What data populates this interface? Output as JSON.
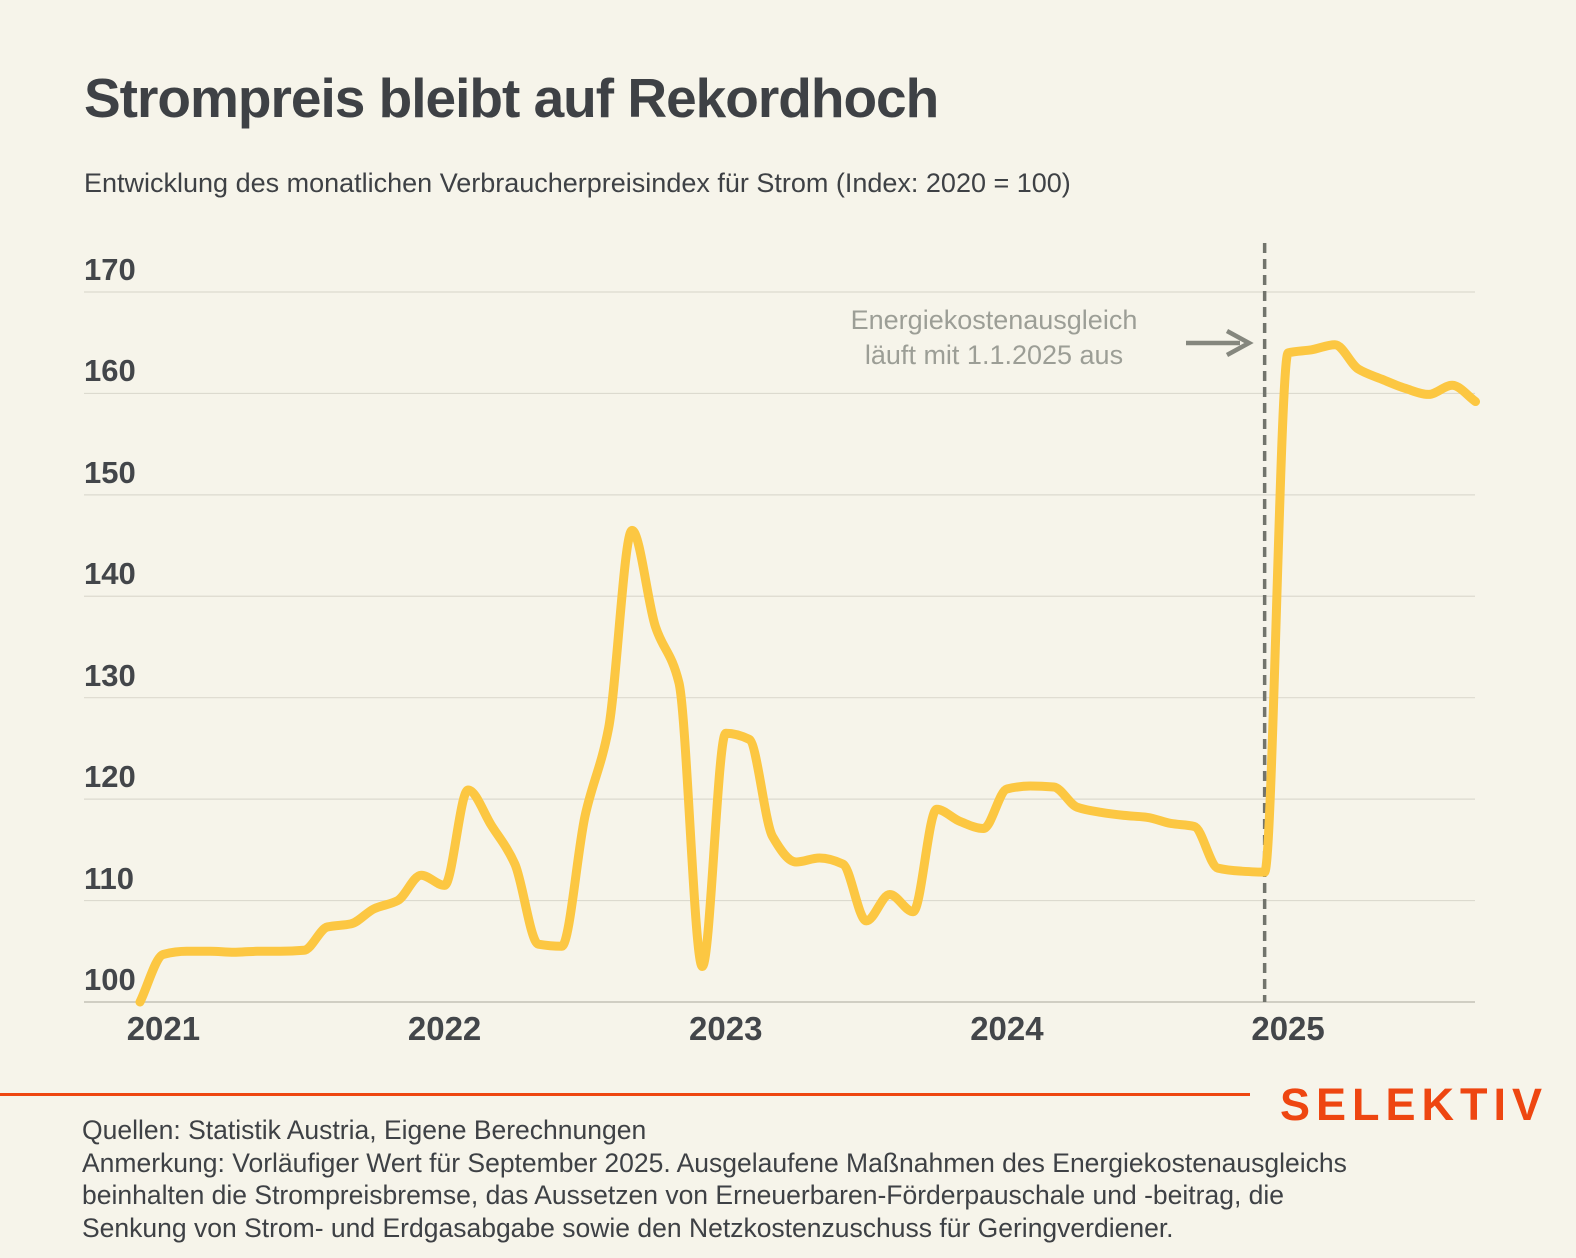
{
  "header": {
    "title": "Strompreis bleibt auf Rekordhoch",
    "subtitle": "Entwicklung des monatlichen Verbraucherpreisindex für Strom (Index: 2020 = 100)"
  },
  "chart_data": {
    "type": "line",
    "title": "Strompreis bleibt auf Rekordhoch",
    "series_name": "Verbraucherpreisindex Strom",
    "xlabel": "",
    "ylabel": "Index (2020 = 100)",
    "ylim": [
      100,
      170
    ],
    "grid": true,
    "y_ticks": [
      100,
      110,
      120,
      130,
      140,
      150,
      160,
      170
    ],
    "x_ticks": [
      {
        "label": "2021",
        "month_index": 1
      },
      {
        "label": "2022",
        "month_index": 13
      },
      {
        "label": "2023",
        "month_index": 25
      },
      {
        "label": "2024",
        "month_index": 37
      },
      {
        "label": "2025",
        "month_index": 49
      }
    ],
    "x": [
      "2020-12",
      "2021-01",
      "2021-02",
      "2021-03",
      "2021-04",
      "2021-05",
      "2021-06",
      "2021-07",
      "2021-08",
      "2021-09",
      "2021-10",
      "2021-11",
      "2021-12",
      "2022-01",
      "2022-02",
      "2022-03",
      "2022-04",
      "2022-05",
      "2022-06",
      "2022-07",
      "2022-08",
      "2022-09",
      "2022-10",
      "2022-11",
      "2022-12",
      "2023-01",
      "2023-02",
      "2023-03",
      "2023-04",
      "2023-05",
      "2023-06",
      "2023-07",
      "2023-08",
      "2023-09",
      "2023-10",
      "2023-11",
      "2023-12",
      "2024-01",
      "2024-02",
      "2024-03",
      "2024-04",
      "2024-05",
      "2024-06",
      "2024-07",
      "2024-08",
      "2024-09",
      "2024-10",
      "2024-11",
      "2024-12",
      "2025-01",
      "2025-02",
      "2025-03",
      "2025-04",
      "2025-05",
      "2025-06",
      "2025-07",
      "2025-08",
      "2025-09"
    ],
    "values": [
      100.0,
      104.7,
      105.0,
      105.0,
      104.9,
      105.0,
      105.0,
      105.1,
      107.4,
      107.7,
      109.2,
      110.0,
      112.5,
      111.5,
      120.9,
      117.4,
      113.6,
      105.7,
      105.5,
      118.4,
      127.0,
      146.5,
      137.0,
      131.5,
      103.5,
      126.5,
      125.9,
      116.3,
      113.8,
      114.2,
      113.6,
      108.0,
      110.6,
      108.9,
      119.0,
      117.8,
      117.1,
      121.0,
      121.3,
      121.2,
      119.2,
      118.7,
      118.4,
      118.2,
      117.6,
      117.3,
      113.2,
      112.9,
      112.8,
      164.0,
      164.3,
      164.8,
      162.4,
      161.4,
      160.5,
      159.9,
      160.8,
      159.2
    ],
    "annotation": {
      "line1": "Energiekostenausgleich",
      "line2": "läuft mit 1.1.2025 aus",
      "marker_month": "2024-12"
    },
    "event_marker_month_index": 48
  },
  "colors": {
    "background": "#f6f4ea",
    "line": "#fcc742",
    "grid": "#dcdacf",
    "axis": "#c3c1b6",
    "text_dark": "#3e4145",
    "annotation_gray": "#9c9e96",
    "marker_gray": "#72746c",
    "arrow_gray": "#85877e",
    "brand_orange": "#ee4611"
  },
  "footer": {
    "brand": "SELEKTIV",
    "source": "Quellen: Statistik Austria, Eigene Berechnungen",
    "note_lines": [
      "Anmerkung: Vorläufiger Wert für September 2025. Ausgelaufene Maßnahmen des Energiekostenausgleichs",
      "beinhalten die Strompreisbremse, das Aussetzen von Erneuerbaren-Förderpauschale und -beitrag, die",
      "Senkung von Strom- und Erdgasabgabe sowie den Netzkostenzuschuss für Geringverdiener."
    ]
  }
}
